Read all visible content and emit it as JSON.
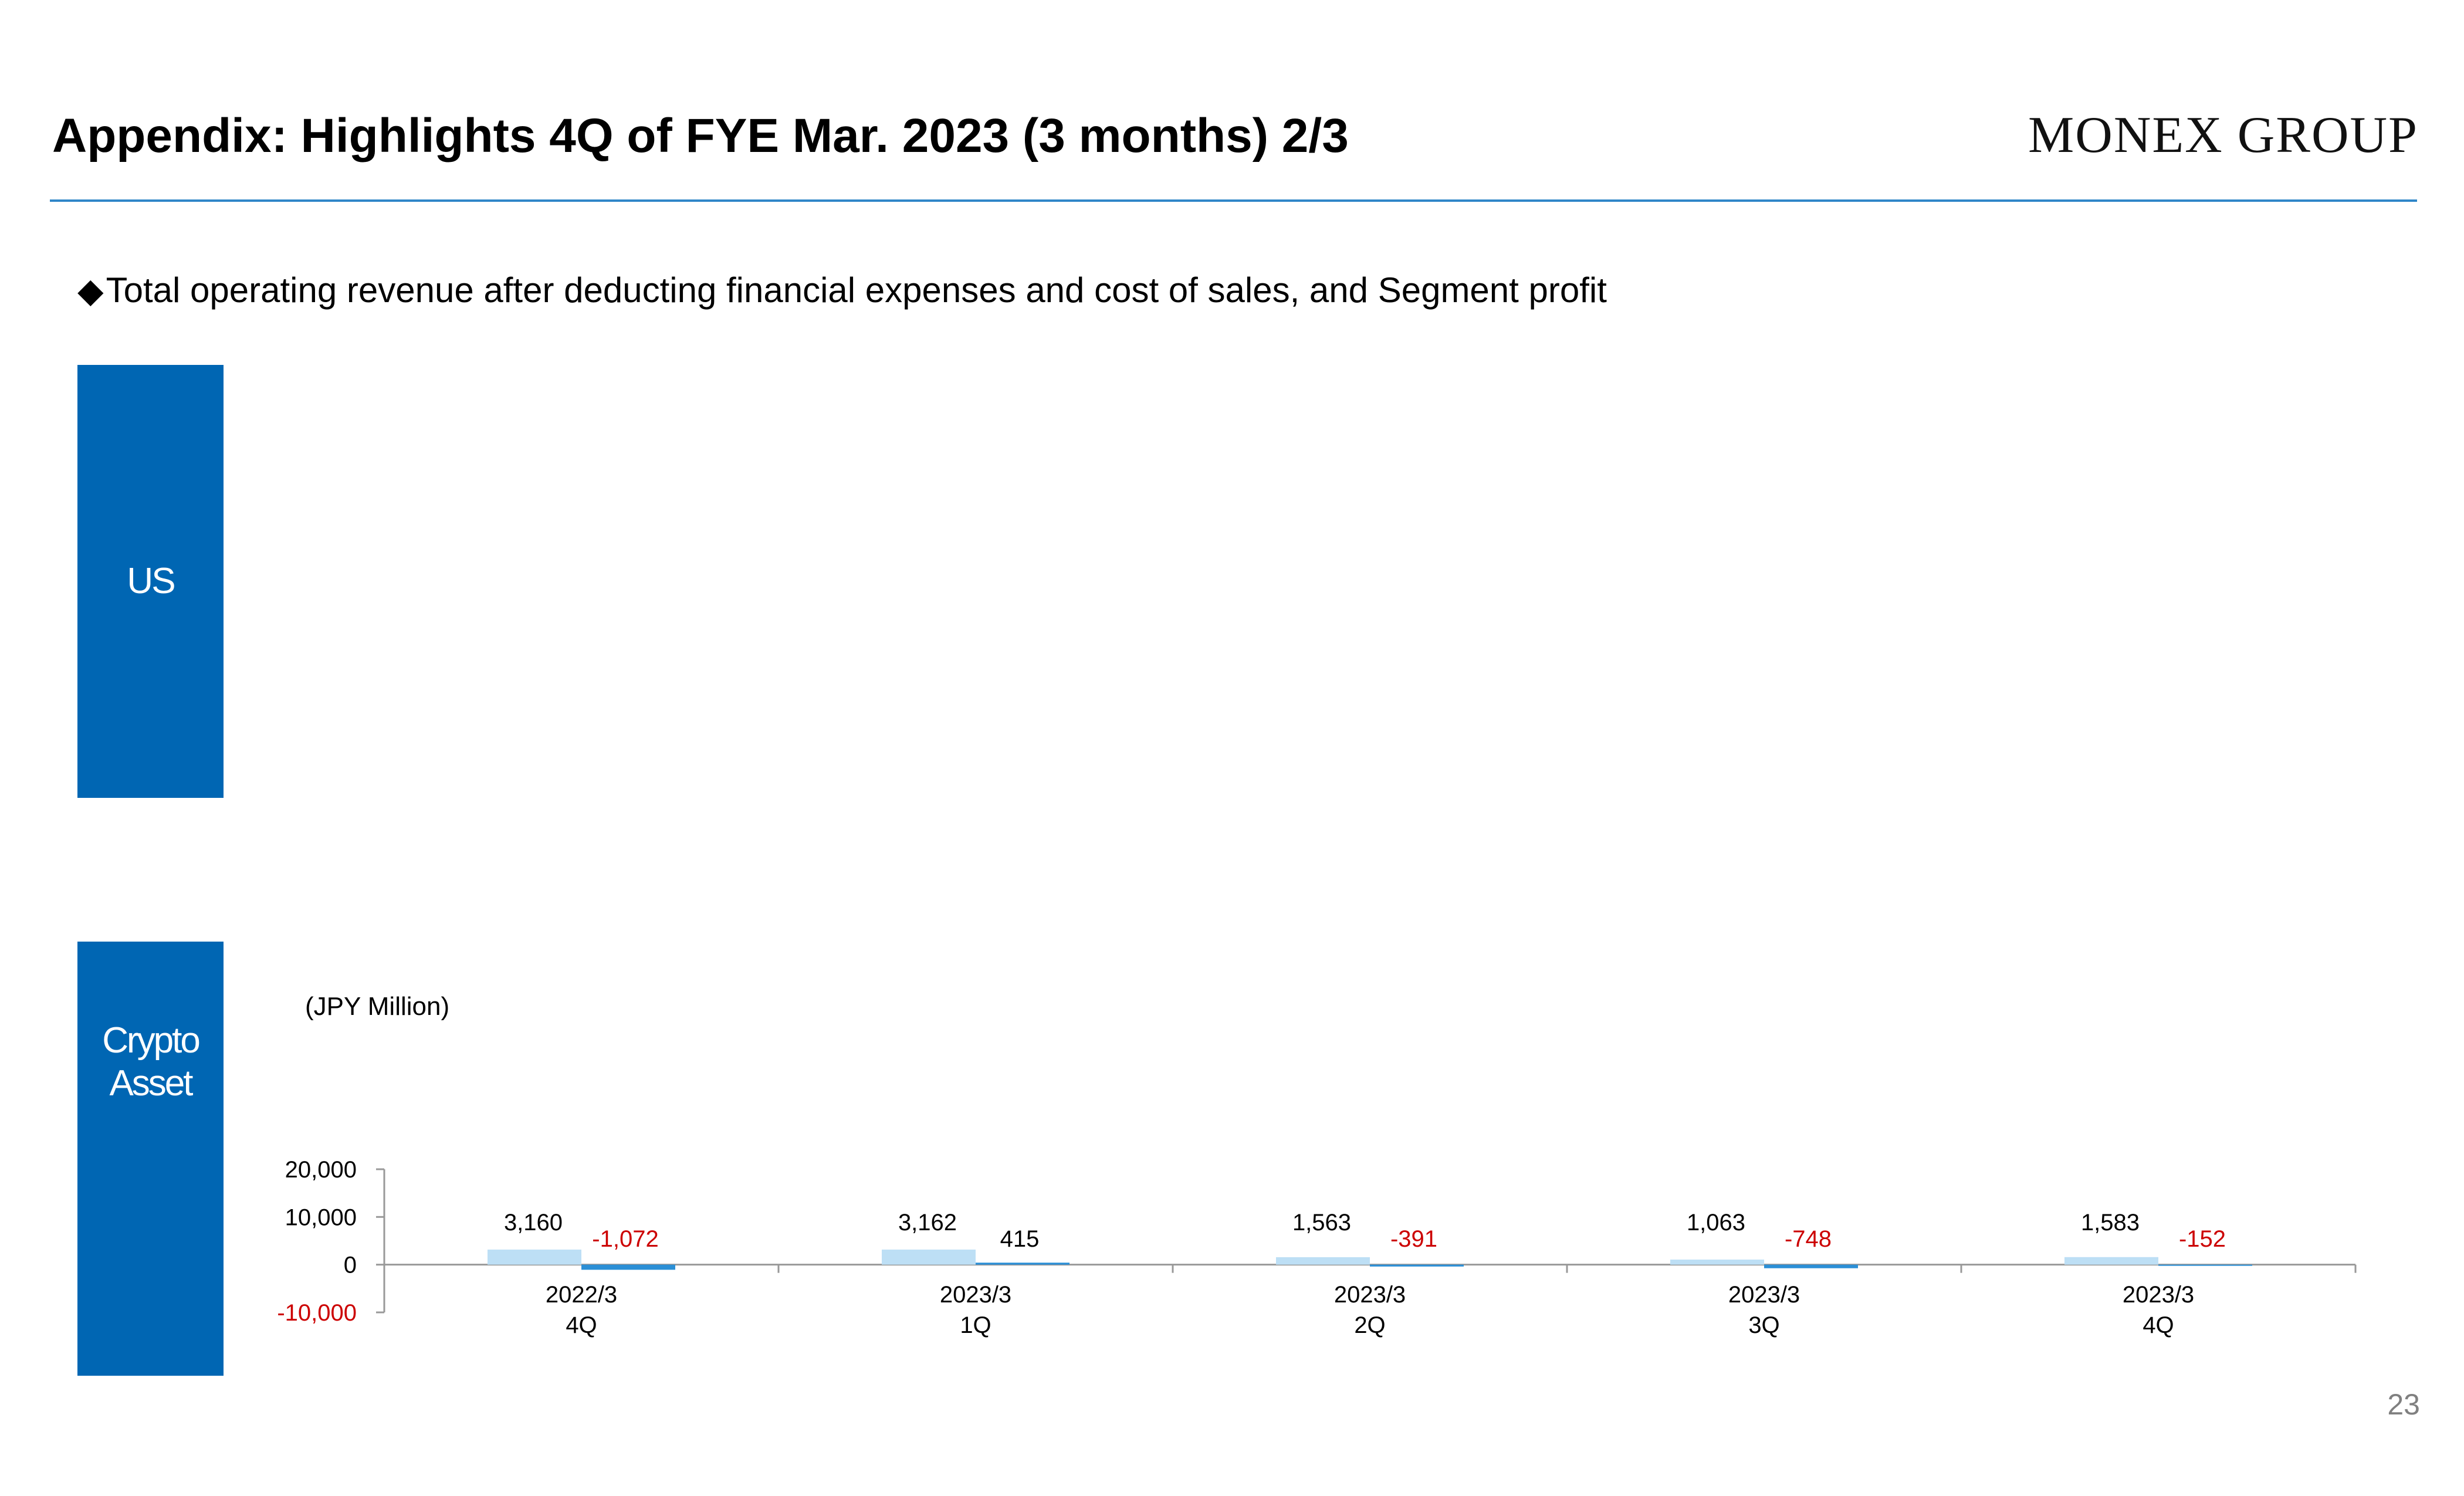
{
  "header": {
    "title": "Appendix: Highlights 4Q of FYE Mar. 2023 (3 months) 2/3",
    "logo": "MONEX GROUP"
  },
  "subtitle": {
    "bullet": "◆",
    "text": "Total operating revenue after deducting financial expenses and cost of sales, and Segment profit"
  },
  "segments": {
    "us": "US",
    "crypto_line1": "Crypto",
    "crypto_line2": "Asset"
  },
  "colors": {
    "segment_box": "#0066b3",
    "revenue_bar": "#bddff5",
    "profit_bar": "#2b8fd6",
    "negative_label": "#cc0000",
    "rule": "#2f86c8"
  },
  "chart_data": {
    "type": "bar",
    "unit_label": "(JPY Million)",
    "categories": [
      [
        "2022/3",
        "4Q"
      ],
      [
        "2023/3",
        "1Q"
      ],
      [
        "2023/3",
        "2Q"
      ],
      [
        "2023/3",
        "3Q"
      ],
      [
        "2023/3",
        "4Q"
      ]
    ],
    "series": [
      {
        "values": [
          3160,
          3162,
          1563,
          1063,
          1583
        ],
        "labels": [
          "3,160",
          "3,162",
          "1,563",
          "1,063",
          "1,583"
        ]
      },
      {
        "values": [
          -1072,
          415,
          -391,
          -748,
          -152
        ],
        "labels": [
          "-1,072",
          "415",
          "-391",
          "-748",
          "-152"
        ]
      }
    ],
    "ylim": [
      -10000,
      20000
    ],
    "yticks": [
      20000,
      10000,
      0,
      -10000
    ],
    "ytick_labels": [
      "20,000",
      "10,000",
      "0",
      "-10,000"
    ],
    "legend": "none",
    "grid": false
  },
  "page_number": "23"
}
